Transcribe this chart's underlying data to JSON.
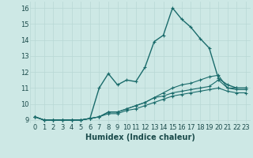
{
  "xlabel": "Humidex (Indice chaleur)",
  "background_color": "#cde8e5",
  "grid_color": "#b8d8d5",
  "line_color": "#1a6b6b",
  "xlim": [
    -0.5,
    23.5
  ],
  "ylim": [
    8.8,
    16.4
  ],
  "yticks": [
    9,
    10,
    11,
    12,
    13,
    14,
    15,
    16
  ],
  "xticks": [
    0,
    1,
    2,
    3,
    4,
    5,
    6,
    7,
    8,
    9,
    10,
    11,
    12,
    13,
    14,
    15,
    16,
    17,
    18,
    19,
    20,
    21,
    22,
    23
  ],
  "series": [
    [
      9.2,
      9.0,
      9.0,
      9.0,
      9.0,
      9.0,
      9.1,
      11.0,
      11.9,
      11.2,
      11.5,
      11.4,
      12.3,
      13.9,
      14.3,
      16.0,
      15.3,
      14.8,
      14.1,
      13.5,
      11.6,
      11.2,
      11.0,
      11.0
    ],
    [
      9.2,
      9.0,
      9.0,
      9.0,
      9.0,
      9.0,
      9.1,
      9.2,
      9.5,
      9.5,
      9.7,
      9.9,
      10.1,
      10.4,
      10.7,
      11.0,
      11.2,
      11.3,
      11.5,
      11.7,
      11.8,
      11.0,
      11.0,
      11.0
    ],
    [
      9.2,
      9.0,
      9.0,
      9.0,
      9.0,
      9.0,
      9.1,
      9.2,
      9.5,
      9.5,
      9.7,
      9.9,
      10.1,
      10.4,
      10.5,
      10.7,
      10.8,
      10.9,
      11.0,
      11.1,
      11.5,
      11.0,
      10.9,
      10.9
    ],
    [
      9.2,
      9.0,
      9.0,
      9.0,
      9.0,
      9.0,
      9.1,
      9.2,
      9.4,
      9.4,
      9.6,
      9.7,
      9.9,
      10.1,
      10.3,
      10.5,
      10.6,
      10.7,
      10.8,
      10.9,
      11.0,
      10.8,
      10.7,
      10.7
    ]
  ],
  "tick_fontsize": 6,
  "xlabel_fontsize": 7
}
